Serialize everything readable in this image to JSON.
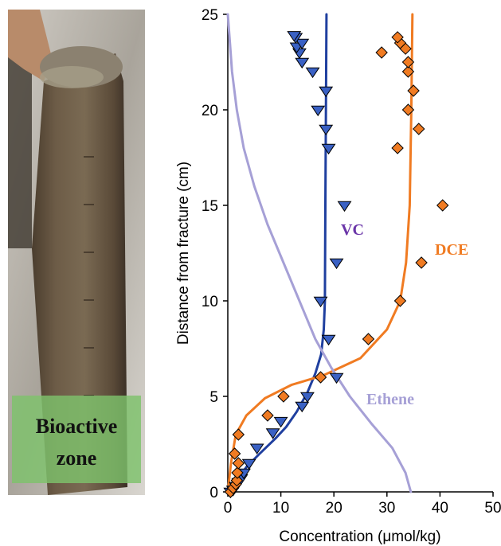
{
  "photo": {
    "zone_label_line1": "Bioactive",
    "zone_label_line2": "zone"
  },
  "chart_data": {
    "type": "scatter",
    "orientation": "concentration on x, distance on y",
    "xlabel": "Concentration (μmol/kg)",
    "ylabel": "Distance from fracture (cm)",
    "xlim": [
      0,
      50
    ],
    "ylim": [
      0,
      25
    ],
    "x_ticks": [
      0,
      10,
      20,
      30,
      40,
      50
    ],
    "y_ticks": [
      0,
      5,
      10,
      15,
      20,
      25
    ],
    "grid": false,
    "series": [
      {
        "name": "VC",
        "color": "#1f3f9f",
        "marker": "triangle-down",
        "points": [
          [
            0.5,
            0.0
          ],
          [
            1.0,
            0.1
          ],
          [
            1.5,
            0.3
          ],
          [
            2.0,
            0.5
          ],
          [
            2.5,
            0.7
          ],
          [
            3.0,
            1.0
          ],
          [
            4.0,
            1.5
          ],
          [
            5.5,
            2.3
          ],
          [
            8.5,
            3.1
          ],
          [
            10.0,
            3.7
          ],
          [
            14.0,
            4.5
          ],
          [
            15.0,
            5.0
          ],
          [
            20.5,
            6.0
          ],
          [
            19.0,
            8.0
          ],
          [
            17.5,
            10.0
          ],
          [
            20.5,
            12.0
          ],
          [
            22.0,
            15.0
          ],
          [
            19.0,
            18.0
          ],
          [
            18.5,
            19.0
          ],
          [
            17.0,
            20.0
          ],
          [
            18.5,
            21.0
          ],
          [
            16.0,
            22.0
          ],
          [
            14.0,
            22.5
          ],
          [
            13.5,
            23.0
          ],
          [
            13.0,
            23.3
          ],
          [
            14.0,
            23.5
          ],
          [
            12.8,
            23.8
          ],
          [
            12.5,
            23.9
          ]
        ],
        "fit": [
          [
            0.0,
            0.0
          ],
          [
            2.0,
            0.7
          ],
          [
            3.5,
            1.3
          ],
          [
            6.0,
            2.0
          ],
          [
            9.0,
            2.8
          ],
          [
            11.0,
            3.4
          ],
          [
            13.0,
            4.2
          ],
          [
            15.0,
            5.2
          ],
          [
            16.5,
            6.2
          ],
          [
            17.6,
            7.2
          ],
          [
            18.1,
            8.5
          ],
          [
            18.3,
            10.0
          ],
          [
            18.4,
            15.0
          ],
          [
            18.5,
            20.0
          ],
          [
            18.6,
            25.0
          ]
        ]
      },
      {
        "name": "DCE",
        "color": "#f07b22",
        "marker": "diamond",
        "points": [
          [
            0.5,
            0.0
          ],
          [
            1.0,
            0.2
          ],
          [
            1.5,
            0.4
          ],
          [
            1.7,
            0.6
          ],
          [
            1.8,
            1.0
          ],
          [
            2.0,
            1.5
          ],
          [
            1.3,
            2.0
          ],
          [
            2.0,
            3.0
          ],
          [
            7.5,
            4.0
          ],
          [
            10.5,
            5.0
          ],
          [
            17.5,
            6.0
          ],
          [
            26.5,
            8.0
          ],
          [
            32.5,
            10.0
          ],
          [
            36.5,
            12.0
          ],
          [
            40.5,
            15.0
          ],
          [
            32.0,
            18.0
          ],
          [
            36.0,
            19.0
          ],
          [
            34.0,
            20.0
          ],
          [
            35.0,
            21.0
          ],
          [
            34.0,
            22.0
          ],
          [
            34.0,
            22.5
          ],
          [
            29.0,
            23.0
          ],
          [
            33.5,
            23.2
          ],
          [
            32.5,
            23.5
          ],
          [
            32.0,
            23.8
          ]
        ],
        "fit": [
          [
            0.0,
            0.0
          ],
          [
            0.6,
            1.5
          ],
          [
            1.5,
            3.0
          ],
          [
            3.5,
            4.0
          ],
          [
            7.0,
            4.9
          ],
          [
            12.0,
            5.6
          ],
          [
            18.0,
            6.1
          ],
          [
            25.0,
            7.0
          ],
          [
            30.0,
            8.5
          ],
          [
            32.5,
            10.0
          ],
          [
            33.6,
            12.0
          ],
          [
            34.3,
            15.0
          ],
          [
            34.6,
            20.0
          ],
          [
            34.8,
            25.0
          ]
        ]
      },
      {
        "name": "Ethene",
        "color": "#a6a0d6",
        "marker": "none",
        "fit": [
          [
            34.5,
            0.0
          ],
          [
            33.5,
            1.0
          ],
          [
            31.0,
            2.3
          ],
          [
            27.0,
            3.6
          ],
          [
            23.0,
            5.0
          ],
          [
            19.5,
            6.5
          ],
          [
            16.5,
            8.0
          ],
          [
            13.5,
            10.0
          ],
          [
            10.5,
            12.0
          ],
          [
            7.5,
            14.0
          ],
          [
            5.0,
            16.0
          ],
          [
            3.0,
            18.0
          ],
          [
            1.7,
            20.0
          ],
          [
            0.8,
            22.0
          ],
          [
            0.4,
            23.5
          ],
          [
            0.0,
            25.0
          ]
        ]
      }
    ],
    "annotations": [
      {
        "text": "VC",
        "color": "#6a35a8"
      },
      {
        "text": "DCE",
        "color": "#f07b22"
      },
      {
        "text": "Ethene",
        "color": "#a6a0d6"
      }
    ]
  }
}
